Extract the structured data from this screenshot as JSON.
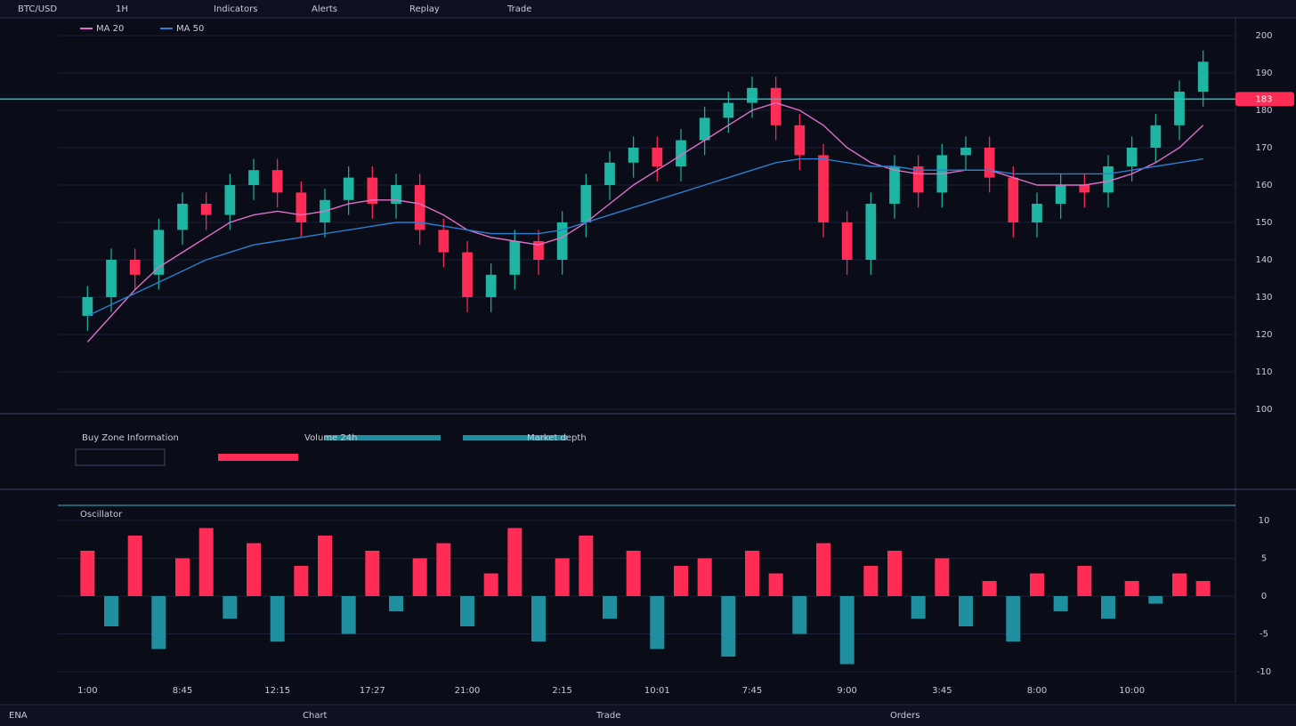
{
  "toolbar": {
    "items": [
      "BTC/USD",
      "1H",
      "Indicators",
      "Alerts",
      "Replay",
      "Trade"
    ]
  },
  "info_panel": {
    "items": [
      "Buy Zone Information",
      "Volume 24h",
      "Market depth"
    ]
  },
  "status": {
    "items": [
      "ENA",
      "Chart",
      "Trade",
      "Orders"
    ]
  },
  "chart_data": [
    {
      "type": "candlestick",
      "categories": [
        "1:00",
        null,
        null,
        null,
        "8:45",
        null,
        null,
        null,
        "12:15",
        null,
        null,
        null,
        "17:27",
        null,
        null,
        null,
        "21:00",
        null,
        null,
        null,
        "2:15",
        null,
        null,
        null,
        "10:01",
        null,
        null,
        null,
        "7:45",
        null,
        null,
        null,
        "9:00",
        null,
        null,
        null,
        "3:45",
        null,
        null,
        null,
        "8:00",
        null,
        null,
        null,
        "10:00",
        null,
        null,
        null
      ],
      "open": [
        125,
        130,
        140,
        136,
        148,
        155,
        152,
        160,
        164,
        158,
        150,
        156,
        162,
        155,
        160,
        148,
        142,
        130,
        136,
        145,
        140,
        150,
        160,
        166,
        170,
        165,
        172,
        178,
        182,
        186,
        176,
        168,
        150,
        140,
        155,
        165,
        158,
        168,
        170,
        162,
        150,
        155,
        160,
        158,
        165,
        170,
        176,
        185
      ],
      "high": [
        133,
        143,
        143,
        151,
        158,
        158,
        163,
        167,
        167,
        161,
        159,
        165,
        165,
        163,
        163,
        151,
        145,
        139,
        148,
        148,
        153,
        163,
        169,
        173,
        173,
        175,
        181,
        185,
        189,
        189,
        179,
        171,
        153,
        158,
        168,
        168,
        171,
        173,
        173,
        165,
        158,
        163,
        163,
        168,
        173,
        179,
        188,
        196
      ],
      "low": [
        121,
        126,
        132,
        132,
        144,
        148,
        148,
        156,
        154,
        146,
        146,
        152,
        151,
        151,
        144,
        138,
        126,
        126,
        132,
        136,
        136,
        146,
        156,
        162,
        161,
        161,
        168,
        174,
        178,
        172,
        164,
        146,
        136,
        136,
        151,
        154,
        154,
        164,
        158,
        146,
        146,
        151,
        154,
        154,
        161,
        166,
        172,
        181
      ],
      "close": [
        130,
        140,
        136,
        148,
        155,
        152,
        160,
        164,
        158,
        150,
        156,
        162,
        155,
        160,
        148,
        142,
        130,
        136,
        145,
        140,
        150,
        160,
        166,
        170,
        165,
        172,
        178,
        182,
        186,
        176,
        168,
        150,
        140,
        155,
        165,
        158,
        168,
        170,
        162,
        150,
        155,
        160,
        158,
        165,
        170,
        176,
        185,
        193
      ],
      "up_color": "#1fb5a3",
      "down_color": "#ff2d55",
      "series": [
        {
          "name": "MA 20",
          "color": "#e070c8",
          "values": [
            118,
            125,
            132,
            138,
            142,
            146,
            150,
            152,
            153,
            152,
            153,
            155,
            156,
            156,
            155,
            152,
            148,
            146,
            145,
            144,
            146,
            150,
            155,
            160,
            164,
            168,
            172,
            176,
            180,
            182,
            180,
            176,
            170,
            166,
            164,
            163,
            163,
            164,
            164,
            162,
            160,
            160,
            160,
            161,
            163,
            166,
            170,
            176
          ]
        },
        {
          "name": "MA 50",
          "color": "#2a7fd0",
          "values": [
            125,
            128,
            131,
            134,
            137,
            140,
            142,
            144,
            145,
            146,
            147,
            148,
            149,
            150,
            150,
            149,
            148,
            147,
            147,
            147,
            148,
            150,
            152,
            154,
            156,
            158,
            160,
            162,
            164,
            166,
            167,
            167,
            166,
            165,
            165,
            164,
            164,
            164,
            164,
            163,
            163,
            163,
            163,
            163,
            164,
            165,
            166,
            167
          ]
        }
      ],
      "price_line": 183,
      "ylim": [
        100,
        200
      ],
      "yticks": [
        100,
        110,
        120,
        130,
        140,
        150,
        160,
        170,
        180,
        190,
        200
      ],
      "grid": true
    },
    {
      "type": "bar",
      "title": "Oscillator",
      "values": [
        6,
        -4,
        8,
        -7,
        5,
        9,
        -3,
        7,
        -6,
        4,
        8,
        -5,
        6,
        -2,
        5,
        7,
        -4,
        3,
        9,
        -6,
        5,
        8,
        -3,
        6,
        -7,
        4,
        5,
        -8,
        6,
        3,
        -5,
        7,
        -9,
        4,
        6,
        -3,
        5,
        -4,
        2,
        -6,
        3,
        -2,
        4,
        -3,
        2,
        -1,
        3,
        2
      ],
      "up_color": "#ff2d55",
      "down_color": "#1f8fa0",
      "ylim": [
        -10,
        10
      ],
      "yticks": [
        -10,
        -5,
        0,
        5,
        10
      ],
      "grid": true
    }
  ]
}
